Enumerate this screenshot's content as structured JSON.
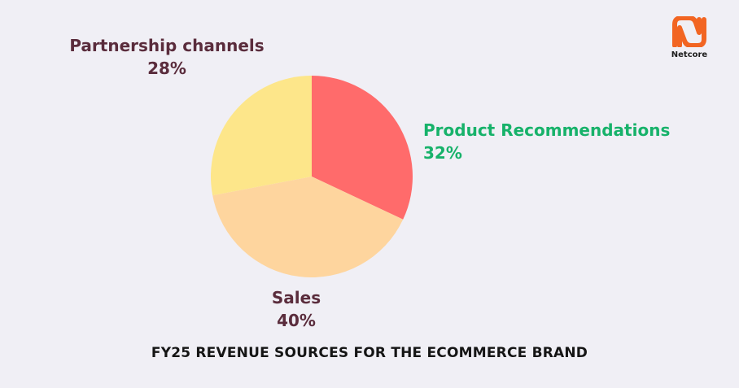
{
  "chart_data": {
    "type": "pie",
    "title": "FY25 REVENUE SOURCES FOR THE ECOMMERCE BRAND",
    "slices": [
      {
        "label": "Product Recommendations",
        "value": 32,
        "value_label": "32%",
        "color": "#ff6b6b",
        "label_color": "#17b26a"
      },
      {
        "label": "Sales",
        "value": 40,
        "value_label": "40%",
        "color": "#fed59e",
        "label_color": "#5a2c3c"
      },
      {
        "label": "Partnership channels",
        "value": 28,
        "value_label": "28%",
        "color": "#fde68a",
        "label_color": "#5a2c3c"
      }
    ]
  },
  "brand": {
    "name": "Netcore",
    "accent": "#f26522"
  },
  "colors": {
    "background": "#f0eff5",
    "title": "#151515"
  }
}
